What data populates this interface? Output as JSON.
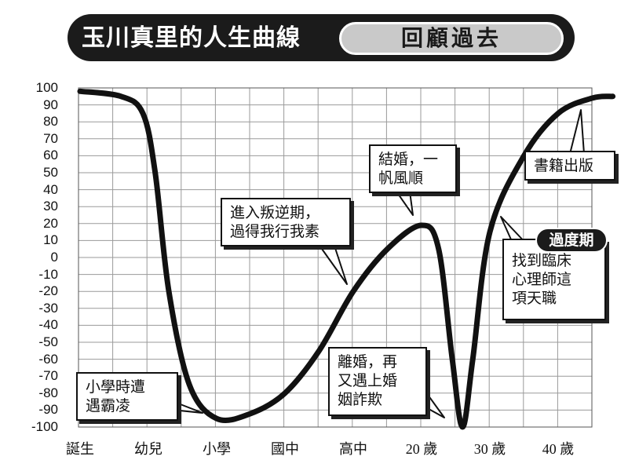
{
  "title": {
    "main": "玉川真里的人生曲線",
    "section": "回顧過去"
  },
  "chart_data": {
    "type": "line",
    "ylim": [
      -100,
      100
    ],
    "yticks": [
      "100",
      "90",
      "80",
      "70",
      "60",
      "50",
      "40",
      "30",
      "20",
      "10",
      "0",
      "-10",
      "-20",
      "-30",
      "-40",
      "-50",
      "-60",
      "-70",
      "-80",
      "-90",
      "-100"
    ],
    "categories": [
      "誕生",
      "幼兒",
      "小學",
      "國中",
      "高中",
      "20 歲",
      "30 歲",
      "40 歲"
    ],
    "grid": true,
    "series": [
      {
        "values": [
          {
            "x": 0.0,
            "y": 98
          },
          {
            "x": 0.6,
            "y": 95
          },
          {
            "x": 0.92,
            "y": 85
          },
          {
            "x": 1.1,
            "y": 50
          },
          {
            "x": 1.3,
            "y": -20
          },
          {
            "x": 1.6,
            "y": -75
          },
          {
            "x": 2.0,
            "y": -95
          },
          {
            "x": 2.5,
            "y": -92
          },
          {
            "x": 3.0,
            "y": -80
          },
          {
            "x": 3.5,
            "y": -55
          },
          {
            "x": 4.0,
            "y": -20
          },
          {
            "x": 4.5,
            "y": 5
          },
          {
            "x": 5.0,
            "y": 19
          },
          {
            "x": 5.25,
            "y": 5
          },
          {
            "x": 5.45,
            "y": -60
          },
          {
            "x": 5.6,
            "y": -100
          },
          {
            "x": 5.75,
            "y": -60
          },
          {
            "x": 6.0,
            "y": 15
          },
          {
            "x": 6.5,
            "y": 60
          },
          {
            "x": 7.0,
            "y": 85
          },
          {
            "x": 7.5,
            "y": 94
          },
          {
            "x": 7.8,
            "y": 95
          }
        ]
      }
    ],
    "annotations": [
      {
        "text": "小學時遭\n遇霸凌"
      },
      {
        "text": "進入叛逆期，\n過得我行我素"
      },
      {
        "text": "結婚，一\n帆風順"
      },
      {
        "text": "離婚，再\n又遇上婚\n姻詐欺"
      },
      {
        "text": "書籍出版"
      },
      {
        "text": "過度期",
        "style": "badge"
      },
      {
        "text": "找到臨床\n心理師這\n項天職"
      }
    ]
  }
}
